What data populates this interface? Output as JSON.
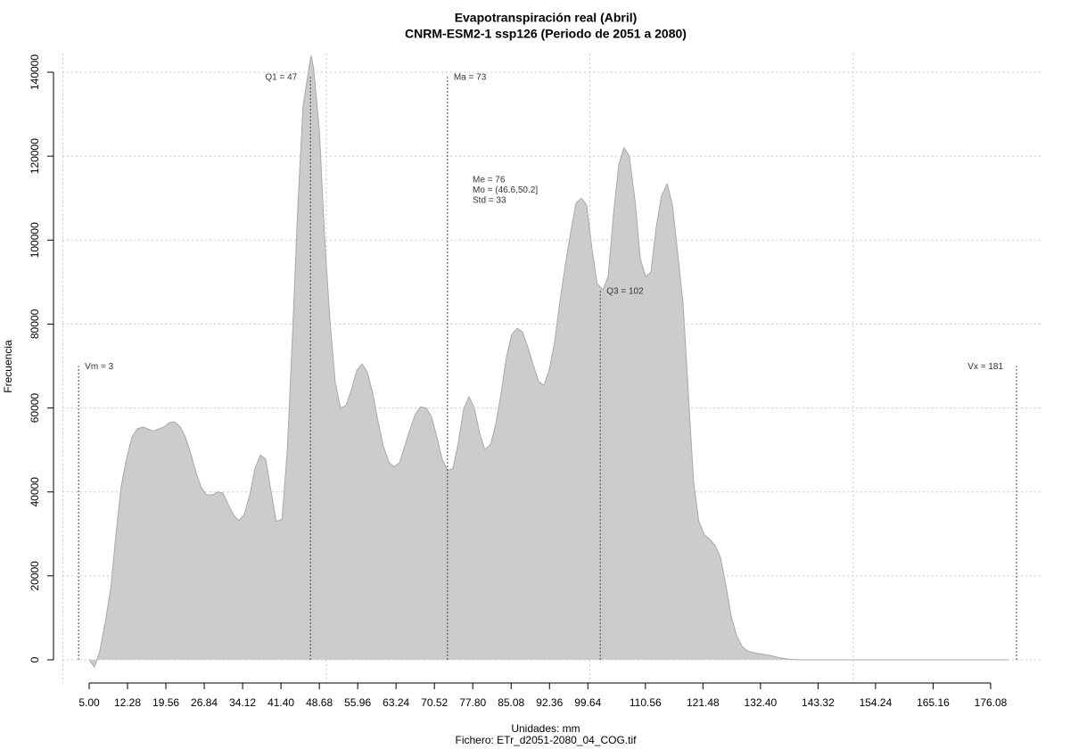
{
  "chart_data": {
    "type": "area",
    "title": "Evapotranspiración real (Abril)",
    "subtitle": "CNRM-ESM2-1 ssp126 (Periodo de 2051 a 2080)",
    "x_label": "Unidades: mm",
    "caption": "Fichero: ETr_d2051-2080_04_COG.tif",
    "y_label": "Frecuencia",
    "color": "#cccccc",
    "grid": true,
    "xlim": [
      5,
      176.08
    ],
    "ylim": [
      0,
      140000
    ],
    "xticks": [
      {
        "value": 5,
        "label": "5.00"
      },
      12.28,
      19.56,
      26.84,
      34.12,
      {
        "value": 41.4,
        "label": "41.40"
      },
      48.68,
      55.96,
      63.24,
      70.52,
      {
        "value": 77.8,
        "label": "77.80"
      },
      85.08,
      92.36,
      99.64,
      110.56,
      121.48,
      {
        "value": 132.4,
        "label": "132.40"
      },
      143.32,
      154.24,
      165.16,
      176.08
    ],
    "xgrid": [
      0,
      50,
      100,
      150
    ],
    "yticks": [
      0,
      20000,
      40000,
      60000,
      80000,
      100000,
      120000,
      140000
    ],
    "x": [
      5.0,
      6.0,
      7.0,
      8.0,
      9.1,
      10.1,
      11.1,
      12.1,
      13.1,
      14.1,
      15.2,
      16.2,
      17.2,
      18.2,
      19.2,
      20.2,
      21.2,
      22.3,
      23.3,
      24.3,
      25.3,
      26.3,
      27.3,
      28.4,
      29.4,
      30.4,
      31.4,
      32.4,
      33.4,
      34.4,
      35.5,
      36.5,
      37.5,
      38.5,
      39.5,
      40.5,
      41.6,
      42.6,
      43.6,
      44.6,
      45.6,
      46.6,
      47.1,
      47.6,
      48.7,
      49.7,
      50.7,
      51.7,
      52.7,
      53.7,
      54.7,
      55.8,
      56.8,
      57.8,
      58.8,
      59.8,
      60.8,
      61.9,
      62.9,
      63.9,
      64.9,
      65.9,
      66.9,
      67.9,
      69.0,
      70.0,
      71.0,
      72.0,
      73.0,
      74.0,
      75.0,
      76.1,
      77.1,
      78.1,
      79.1,
      80.1,
      81.2,
      82.2,
      83.2,
      84.2,
      85.2,
      86.2,
      87.2,
      88.3,
      89.3,
      90.3,
      91.3,
      92.3,
      93.3,
      94.3,
      95.3,
      96.4,
      97.4,
      98.4,
      99.4,
      100.4,
      101.4,
      102.5,
      103.5,
      104.5,
      105.5,
      106.5,
      107.5,
      108.6,
      109.6,
      110.6,
      111.6,
      112.6,
      113.6,
      114.7,
      115.7,
      116.7,
      117.7,
      118.7,
      119.7,
      120.7,
      121.8,
      122.8,
      123.8,
      124.8,
      125.8,
      126.8,
      127.8,
      128.9,
      129.9,
      131.9,
      134.0,
      136.0,
      138.0,
      140.4,
      179.3
    ],
    "values": [
      0,
      -1700,
      2000,
      8500,
      17000,
      30000,
      41500,
      48000,
      53000,
      55000,
      55500,
      55000,
      54500,
      55000,
      55500,
      56500,
      56700,
      55500,
      53000,
      49000,
      44500,
      41000,
      39300,
      39300,
      40000,
      39700,
      37000,
      34500,
      33200,
      34500,
      39300,
      45700,
      48800,
      47800,
      40300,
      33000,
      33500,
      50000,
      77500,
      108000,
      132000,
      140000,
      144000,
      141000,
      126000,
      100000,
      80700,
      66000,
      60000,
      60500,
      64000,
      69000,
      70500,
      68500,
      63700,
      57000,
      51000,
      47000,
      46000,
      47000,
      51000,
      55000,
      58500,
      60300,
      60000,
      57800,
      53000,
      47800,
      45200,
      45500,
      51400,
      60000,
      62700,
      60000,
      54000,
      50000,
      51400,
      56300,
      63700,
      72200,
      77500,
      79000,
      78200,
      74300,
      70100,
      66300,
      65400,
      69000,
      75400,
      85000,
      93500,
      102000,
      108800,
      110000,
      108400,
      98100,
      89600,
      88200,
      91300,
      106200,
      117900,
      122000,
      120000,
      109400,
      95600,
      91300,
      92400,
      103000,
      110500,
      113400,
      108300,
      96700,
      85000,
      63700,
      42500,
      33000,
      29700,
      28700,
      27200,
      24400,
      18000,
      10600,
      6000,
      3200,
      2100,
      1500,
      1100,
      500,
      100,
      0,
      0
    ],
    "markers": [
      {
        "label": "Vm = 3",
        "x": 3,
        "y": 70000
      },
      {
        "label": "Q1 = 47",
        "x": 47,
        "y": 139000
      },
      {
        "label": "Ma = 73",
        "x": 73,
        "y": 139000
      },
      {
        "label": "Q3 = 102",
        "x": 102,
        "y": 88000
      },
      {
        "label": "Vx = 181",
        "x": 181,
        "y": 70000
      }
    ],
    "stats": [
      "Me = 76",
      "Mo = (46.6,50.2]",
      "Std = 33"
    ]
  }
}
